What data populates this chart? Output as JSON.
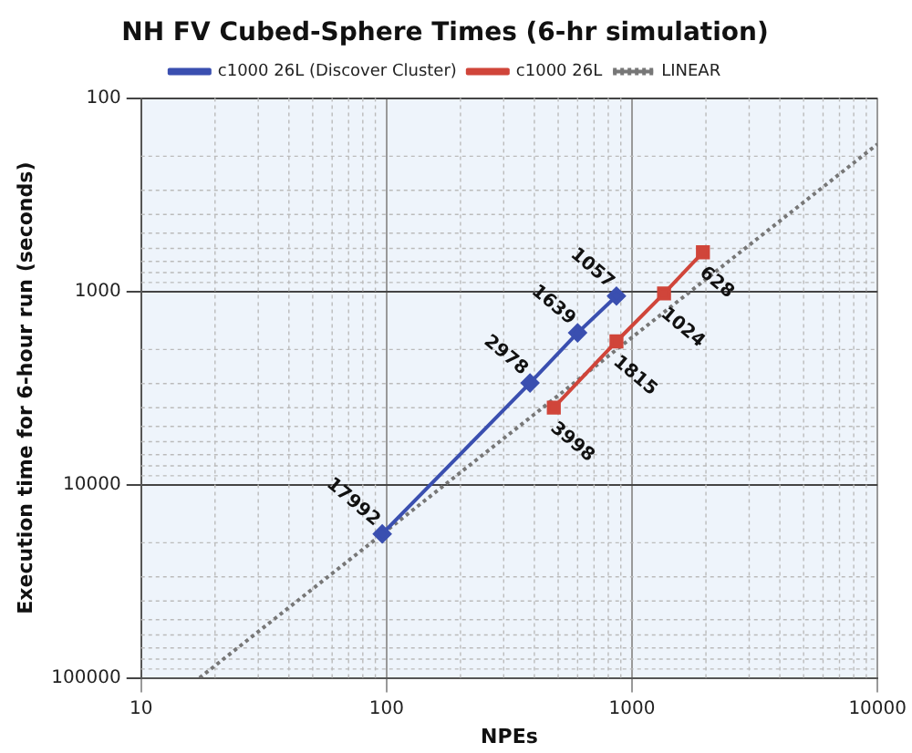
{
  "chart_data": {
    "type": "line",
    "title": "NH FV Cubed-Sphere Times (6-hr simulation)",
    "xlabel": "NPEs",
    "ylabel": "Execution time for 6-hour run (seconds)",
    "log": "xy",
    "xlim": [
      10,
      10000
    ],
    "xticks": [
      10,
      100,
      1000,
      10000
    ],
    "ylim": [
      100000,
      100
    ],
    "yticks": [
      100,
      1000,
      10000,
      100000
    ],
    "grid": true,
    "legend": "top",
    "data_labels": true,
    "series": [
      {
        "name": "c1000 26L (Discover Cluster)",
        "color": "#3a4fb0",
        "x": [
          96,
          384,
          600,
          864
        ],
        "values": [
          17992,
          2978,
          1639,
          1057
        ],
        "marker": "diamond",
        "line_style": "solid"
      },
      {
        "name": "c1000 26L",
        "color": "#d0453a",
        "x": [
          480,
          864,
          1350,
          1944
        ],
        "values": [
          3998,
          1815,
          1024,
          628
        ],
        "marker": "square",
        "line_style": "solid"
      },
      {
        "name": "LINEAR",
        "color": "#777777",
        "x": [
          17.3,
          10000
        ],
        "values": [
          100000,
          173
        ],
        "marker": "none",
        "line_style": "dotted",
        "data_labels": false
      }
    ]
  }
}
